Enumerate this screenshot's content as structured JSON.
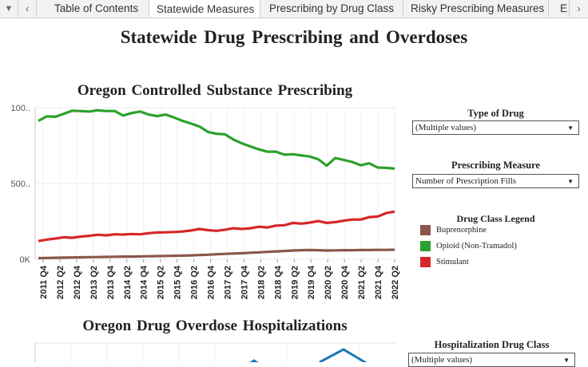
{
  "tabs": {
    "items": [
      "Table of Contents",
      "Statewide Measures",
      "Prescribing by Drug Class",
      "Risky Prescribing Measures",
      "E"
    ],
    "active_index": 1
  },
  "page": {
    "title": "Statewide Drug Prescribing and Overdoses"
  },
  "chart1": {
    "title": "Oregon Controlled Substance Prescribing"
  },
  "chart2": {
    "title": "Oregon Drug Overdose Hospitalizations"
  },
  "controls": {
    "type_of_drug": {
      "label": "Type of Drug",
      "value": "(Multiple values)"
    },
    "prescribing_measure": {
      "label": "Prescribing Measure",
      "value": "Number of Prescription Fills"
    },
    "legend": {
      "title": "Drug Class Legend",
      "items": [
        {
          "label": "Buprenorphine",
          "color": "#8c564b"
        },
        {
          "label": "Opioid (Non-Tramadol)",
          "color": "#2ca02c"
        },
        {
          "label": "Stimulant",
          "color": "#d62728"
        }
      ]
    },
    "hospitalization_drug_class": {
      "label": "Hospitalization Drug Class",
      "value": "(Multiple values)"
    }
  },
  "icons": {
    "tab_menu": "chevron-down-icon",
    "tab_prev": "chevron-left-icon",
    "tab_next": "chevron-right-icon",
    "dropdown_arrow": "caret-down-icon"
  },
  "chart_data": [
    {
      "type": "line",
      "title": "Oregon Controlled Substance Prescribing",
      "y_ticks": [
        "100..",
        "500..",
        "0K"
      ],
      "ylim": [
        0,
        1000
      ],
      "x_labels": [
        "2011 Q4",
        "2012 Q2",
        "2012 Q4",
        "2013 Q2",
        "2013 Q4",
        "2014 Q2",
        "2014 Q4",
        "2015 Q2",
        "2015 Q4",
        "2016 Q2",
        "2016 Q4",
        "2017 Q2",
        "2017 Q4",
        "2018 Q2",
        "2018 Q4",
        "2019 Q2",
        "2019 Q4",
        "2020 Q2",
        "2020 Q4",
        "2021 Q2",
        "2021 Q4",
        "2022 Q2"
      ],
      "grid": true,
      "series": [
        {
          "name": "Opioid (Non-Tramadol)",
          "color": "#2ca02c",
          "values": [
            913,
            943,
            940,
            960,
            980,
            978,
            975,
            983,
            978,
            978,
            948,
            965,
            975,
            955,
            945,
            955,
            935,
            913,
            895,
            876,
            840,
            828,
            825,
            790,
            765,
            744,
            725,
            710,
            710,
            690,
            693,
            685,
            678,
            660,
            618,
            668,
            655,
            642,
            620,
            633,
            605,
            603,
            598
          ]
        },
        {
          "name": "Stimulant",
          "color": "#d62728",
          "values": [
            120,
            130,
            137,
            145,
            142,
            150,
            155,
            162,
            158,
            165,
            163,
            167,
            165,
            172,
            177,
            178,
            180,
            183,
            190,
            200,
            192,
            188,
            195,
            205,
            200,
            205,
            215,
            210,
            222,
            225,
            240,
            235,
            242,
            252,
            240,
            245,
            255,
            262,
            262,
            278,
            282,
            305,
            315
          ]
        },
        {
          "name": "Buprenorphine",
          "color": "#8c564b",
          "values": [
            8,
            9,
            10,
            11,
            12,
            13,
            14,
            15,
            16,
            17,
            18,
            18,
            19,
            20,
            21,
            22,
            23,
            24,
            26,
            28,
            30,
            33,
            36,
            38,
            40,
            43,
            46,
            49,
            52,
            55,
            58,
            60,
            61,
            60,
            58,
            59,
            60,
            60,
            61,
            61,
            62,
            62,
            63
          ]
        }
      ]
    },
    {
      "type": "line",
      "title": "Oregon Drug Overdose Hospitalizations",
      "series": [
        {
          "color": "#1f77b4",
          "values": []
        }
      ]
    }
  ]
}
